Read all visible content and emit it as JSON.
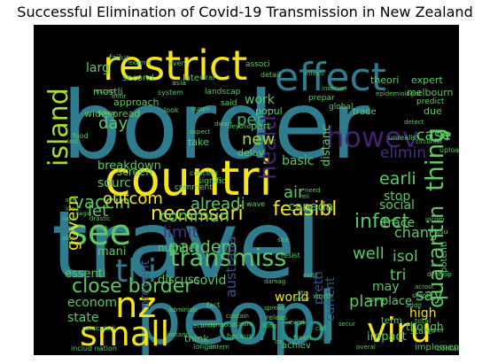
{
  "title": "Successful Elimination of Covid-19 Transmission in New Zealand",
  "palette": {
    "yellow": "#f2e41d",
    "teal": "#2f7c8e",
    "blue": "#3b5b8c",
    "purple": "#44216f",
    "green": "#5dc864",
    "mint": "#35b779",
    "lime": "#a8db34",
    "cyan": "#21918c",
    "indigo": "#3a528b",
    "darkpurple": "#46327e"
  },
  "words": [
    {
      "text": "border",
      "color": "teal"
    },
    {
      "text": "travel",
      "color": "teal"
    },
    {
      "text": "peopl",
      "color": "teal"
    },
    {
      "text": "countri",
      "color": "yellow"
    },
    {
      "text": "restrict",
      "color": "yellow"
    },
    {
      "text": "effect",
      "color": "teal"
    },
    {
      "text": "island",
      "color": "lime"
    },
    {
      "text": "howev",
      "color": "purple"
    },
    {
      "text": "see",
      "color": "green"
    },
    {
      "text": "thi",
      "color": "teal"
    },
    {
      "text": "thing",
      "color": "green"
    },
    {
      "text": "small",
      "color": "yellow"
    },
    {
      "text": "control",
      "color": "cyan"
    },
    {
      "text": "viru",
      "color": "yellow"
    },
    {
      "text": "nz",
      "color": "yellow"
    },
    {
      "text": "transmiss",
      "color": "green"
    },
    {
      "text": "close border",
      "color": "green"
    },
    {
      "text": "pandem",
      "color": "green"
    },
    {
      "text": "quarantin",
      "color": "green"
    },
    {
      "text": "health",
      "color": "purple"
    },
    {
      "text": "necessari",
      "color": "yellow"
    },
    {
      "text": "feasibl",
      "color": "yellow"
    },
    {
      "text": "infect",
      "color": "green"
    },
    {
      "text": "vaccin",
      "color": "green"
    },
    {
      "text": "day",
      "color": "green"
    },
    {
      "text": "new",
      "color": "lime"
    },
    {
      "text": "per",
      "color": "mint"
    },
    {
      "text": "case",
      "color": "green"
    },
    {
      "text": "elimin",
      "color": "darkpurple"
    },
    {
      "text": "earli",
      "color": "green"
    },
    {
      "text": "australia",
      "color": "indigo"
    },
    {
      "text": "pretti",
      "color": "indigo"
    },
    {
      "text": "limit",
      "color": "darkpurple"
    },
    {
      "text": "let",
      "color": "green"
    },
    {
      "text": "outcom",
      "color": "yellow"
    },
    {
      "text": "govern",
      "color": "yellow"
    },
    {
      "text": "commun",
      "color": "green"
    },
    {
      "text": "alreadi",
      "color": "green"
    },
    {
      "text": "well",
      "color": "green"
    },
    {
      "text": "isol",
      "color": "green"
    },
    {
      "text": "say",
      "color": "green"
    },
    {
      "text": "tri",
      "color": "green"
    },
    {
      "text": "may",
      "color": "green"
    },
    {
      "text": "chang",
      "color": "green"
    },
    {
      "text": "trace",
      "color": "green"
    },
    {
      "text": "social",
      "color": "green"
    },
    {
      "text": "plan",
      "color": "green"
    },
    {
      "text": "current",
      "color": "indigo"
    },
    {
      "text": "world",
      "color": "yellow"
    },
    {
      "text": "covid",
      "color": "green"
    },
    {
      "text": "state",
      "color": "green"
    },
    {
      "text": "econom",
      "color": "green"
    },
    {
      "text": "essenti",
      "color": "green"
    },
    {
      "text": "prevent",
      "color": "indigo"
    },
    {
      "text": "discuss",
      "color": "green"
    },
    {
      "text": "number",
      "color": "green"
    },
    {
      "text": "mani",
      "color": "green"
    },
    {
      "text": "sourc",
      "color": "green"
    },
    {
      "text": "screen",
      "color": "green"
    },
    {
      "text": "breakdown",
      "color": "green"
    },
    {
      "text": "air",
      "color": "green"
    },
    {
      "text": "canada",
      "color": "green"
    },
    {
      "text": "basic",
      "color": "green"
    },
    {
      "text": "stop",
      "color": "green"
    },
    {
      "text": "distanc",
      "color": "green"
    },
    {
      "text": "impact",
      "color": "green"
    },
    {
      "text": "high",
      "color": "yellow"
    },
    {
      "text": "place",
      "color": "green"
    },
    {
      "text": "though",
      "color": "green"
    },
    {
      "text": "work",
      "color": "green"
    },
    {
      "text": "larg",
      "color": "green"
    },
    {
      "text": "theori",
      "color": "green"
    },
    {
      "text": "expert",
      "color": "green"
    },
    {
      "text": "second",
      "color": "green"
    },
    {
      "text": "late",
      "color": "green"
    },
    {
      "text": "widespread",
      "color": "green"
    },
    {
      "text": "approach",
      "color": "green"
    },
    {
      "text": "mostli",
      "color": "green"
    },
    {
      "text": "melbourn",
      "color": "green"
    },
    {
      "text": "potenti",
      "color": "green"
    },
    {
      "text": "due",
      "color": "green"
    },
    {
      "text": "take",
      "color": "green"
    },
    {
      "text": "popul",
      "color": "green"
    },
    {
      "text": "delay",
      "color": "green"
    },
    {
      "text": "trade",
      "color": "green"
    },
    {
      "text": "global",
      "color": "green"
    },
    {
      "text": "part",
      "color": "green"
    },
    {
      "text": "epidemiologist",
      "color": "green"
    },
    {
      "text": "contact",
      "color": "green"
    },
    {
      "text": "implement",
      "color": "green"
    },
    {
      "text": "start",
      "color": "green"
    },
    {
      "text": "releas",
      "color": "green"
    },
    {
      "text": "think",
      "color": "green"
    },
    {
      "text": "achiev",
      "color": "green"
    },
    {
      "text": "term",
      "color": "green"
    },
    {
      "text": "total",
      "color": "green"
    },
    {
      "text": "need",
      "color": "green"
    },
    {
      "text": "issu",
      "color": "green"
    },
    {
      "text": "comment",
      "color": "green"
    },
    {
      "text": "signific",
      "color": "green"
    },
    {
      "text": "food",
      "color": "green"
    },
    {
      "text": "even",
      "color": "green"
    },
    {
      "text": "wave",
      "color": "green"
    },
    {
      "text": "predict",
      "color": "green"
    },
    {
      "text": "upload",
      "color": "green"
    },
    {
      "text": "rate",
      "color": "green"
    },
    {
      "text": "failur",
      "color": "green"
    },
    {
      "text": "associ",
      "color": "green"
    },
    {
      "text": "detail",
      "color": "green"
    },
    {
      "text": "viral",
      "color": "green"
    },
    {
      "text": "landscap",
      "color": "green"
    },
    {
      "text": "said",
      "color": "green"
    },
    {
      "text": "prepar",
      "color": "green"
    },
    {
      "text": "look",
      "color": "green"
    },
    {
      "text": "allow",
      "color": "green"
    },
    {
      "text": "asia",
      "color": "green"
    },
    {
      "text": "system",
      "color": "green"
    },
    {
      "text": "concern",
      "color": "green"
    },
    {
      "text": "fact",
      "color": "green"
    },
    {
      "text": "cours",
      "color": "green"
    },
    {
      "text": "longer",
      "color": "green"
    },
    {
      "text": "includ nation",
      "color": "green"
    },
    {
      "text": "administr",
      "color": "green"
    },
    {
      "text": "instanc",
      "color": "green"
    },
    {
      "text": "particularli",
      "color": "green"
    },
    {
      "text": "resist",
      "color": "green"
    },
    {
      "text": "damag",
      "color": "green"
    },
    {
      "text": "except",
      "color": "green"
    },
    {
      "text": "site",
      "color": "green"
    },
    {
      "text": "worth",
      "color": "green"
    },
    {
      "text": "exist",
      "color": "green"
    },
    {
      "text": "life",
      "color": "green"
    },
    {
      "text": "order",
      "color": "green"
    },
    {
      "text": "understood",
      "color": "green"
    },
    {
      "text": "becaus",
      "color": "green"
    },
    {
      "text": "freeli",
      "color": "green"
    },
    {
      "text": "poorer",
      "color": "green"
    },
    {
      "text": "secur",
      "color": "green"
    },
    {
      "text": "econmi",
      "color": "green"
    },
    {
      "text": "intern",
      "color": "green"
    },
    {
      "text": "skeptic",
      "color": "green"
    },
    {
      "text": "acrost",
      "color": "green"
    },
    {
      "text": "gener",
      "color": "green"
    },
    {
      "text": "overal",
      "color": "green"
    },
    {
      "text": "addit",
      "color": "green"
    },
    {
      "text": "requir",
      "color": "green"
    },
    {
      "text": "begin",
      "color": "green"
    },
    {
      "text": "idea",
      "color": "green"
    },
    {
      "text": "set",
      "color": "green"
    },
    {
      "text": "lost",
      "color": "green"
    },
    {
      "text": "drastic",
      "color": "green"
    },
    {
      "text": "unrealist",
      "color": "green"
    },
    {
      "text": "circumst",
      "color": "green"
    },
    {
      "text": "detect",
      "color": "green"
    },
    {
      "text": "entir",
      "color": "green"
    },
    {
      "text": "suppli",
      "color": "green"
    },
    {
      "text": "infecti",
      "color": "green"
    },
    {
      "text": "insecur",
      "color": "green"
    },
    {
      "text": "beyond",
      "color": "green"
    },
    {
      "text": "aspect",
      "color": "green"
    },
    {
      "text": "dwarf",
      "color": "green"
    },
    {
      "text": "exampl",
      "color": "green"
    },
    {
      "text": "week",
      "color": "green"
    },
    {
      "text": "alon",
      "color": "green"
    },
    {
      "text": "incom",
      "color": "green"
    },
    {
      "text": "develop",
      "color": "green"
    },
    {
      "text": "spread",
      "color": "green"
    },
    {
      "text": "contain",
      "color": "green"
    },
    {
      "text": "reli",
      "color": "green"
    },
    {
      "text": "everi",
      "color": "green"
    },
    {
      "text": "call",
      "color": "green"
    },
    {
      "text": "long",
      "color": "green"
    },
    {
      "text": "co",
      "color": "green"
    }
  ]
}
